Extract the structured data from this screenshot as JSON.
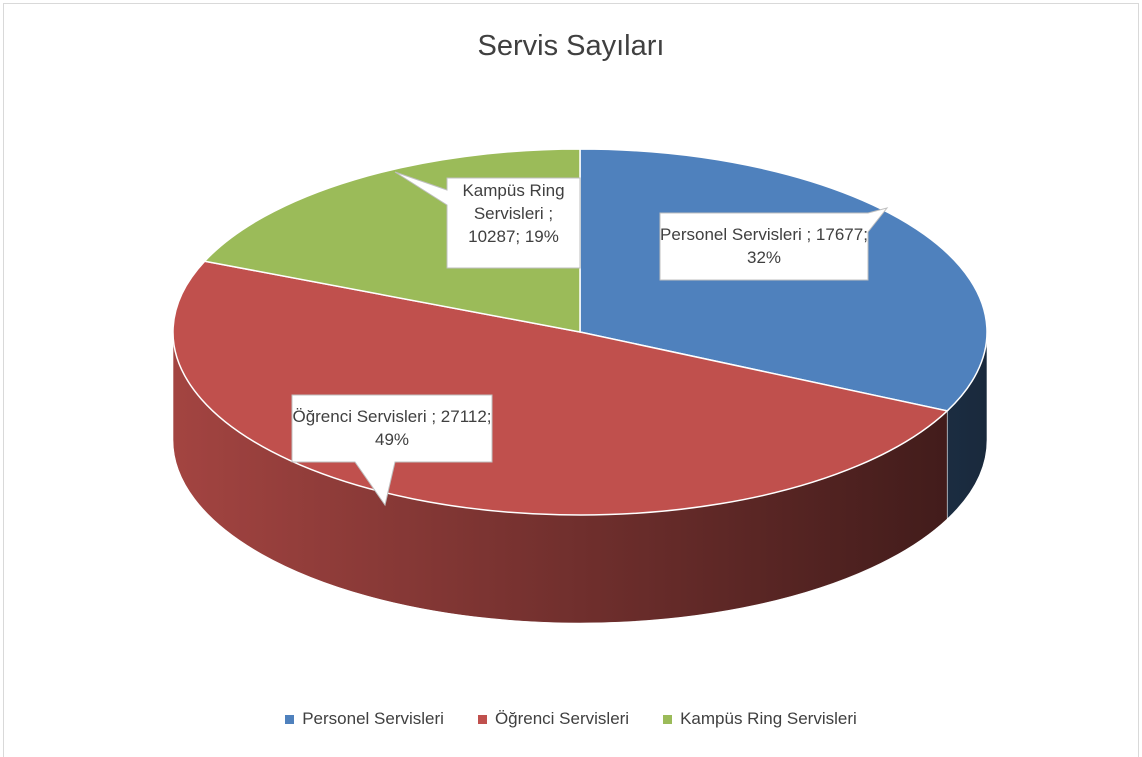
{
  "chart_data": {
    "type": "pie3d",
    "title": "Servis Sayıları",
    "categories": [
      "Personel Servisleri",
      "Öğrenci Servisleri",
      "Kampüs Ring Servisleri"
    ],
    "values": [
      17677,
      27112,
      10287
    ],
    "value_labels": [
      "Personel Servisleri ; 17677; 32%",
      "Öğrenci Servisleri ; 27112; 49%",
      "Kampüs Ring Servisleri ; 10287; 19%"
    ],
    "colors": [
      "#4f81bd",
      "#c0504d",
      "#9bbb59"
    ],
    "legend": "bottom"
  }
}
